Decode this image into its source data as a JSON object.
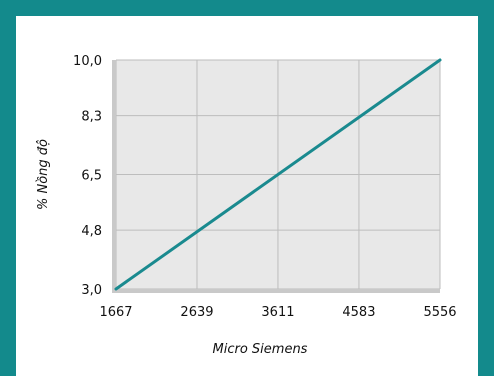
{
  "colors": {
    "frame": "#138a8c",
    "plot_bg": "#e8e8e8",
    "grid": "#bdbdbd",
    "line": "#1a8a8f",
    "axis_bar": "#c9c9c9"
  },
  "chart_data": {
    "type": "line",
    "title": "",
    "xlabel": "Micro Siemens",
    "ylabel": "% Nồng độ",
    "xlim": [
      1667,
      5556
    ],
    "ylim": [
      3.0,
      10.0
    ],
    "x_ticks": [
      "1667",
      "2639",
      "3611",
      "4583",
      "5556"
    ],
    "y_ticks": [
      "10,0",
      "8,3",
      "6,5",
      "4,8",
      "3,0"
    ],
    "grid": true,
    "series": [
      {
        "x": [
          1667,
          5556
        ],
        "y": [
          3.0,
          10.0
        ]
      }
    ]
  }
}
